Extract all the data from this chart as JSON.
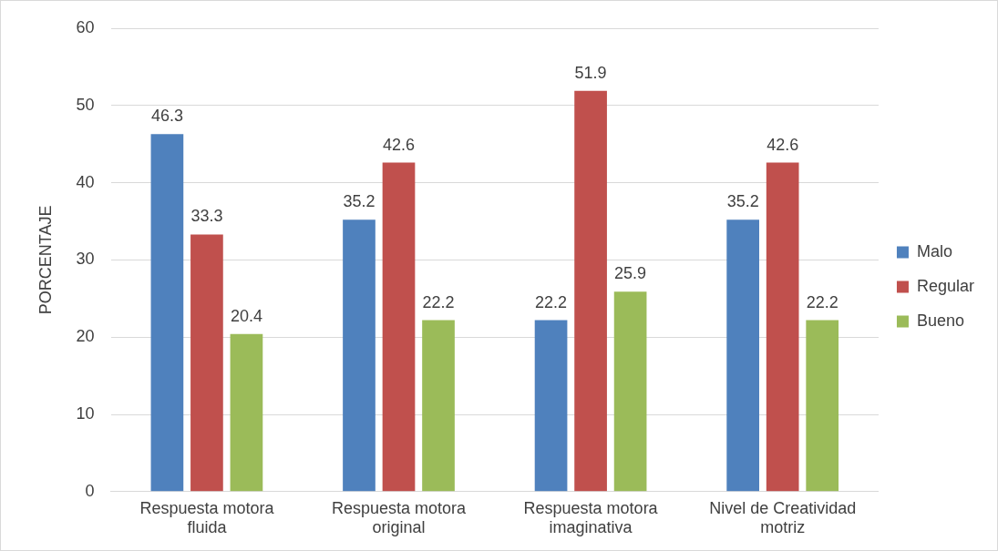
{
  "chart_data": {
    "type": "bar",
    "ylabel": "PORCENTAJE",
    "categories": [
      "Respuesta motora fluida",
      "Respuesta motora original",
      "Respuesta motora imaginativa",
      "Nivel de Creatividad motriz"
    ],
    "series": [
      {
        "name": "Malo",
        "color": "#4f81bd",
        "values": [
          46.3,
          35.2,
          22.2,
          35.2
        ]
      },
      {
        "name": "Regular",
        "color": "#c0504d",
        "values": [
          33.3,
          42.6,
          51.9,
          42.6
        ]
      },
      {
        "name": "Bueno",
        "color": "#9bbb59",
        "values": [
          20.4,
          22.2,
          25.9,
          22.2
        ]
      }
    ],
    "ylim": [
      0,
      60
    ],
    "yticks": [
      0,
      10,
      20,
      30,
      40,
      50,
      60
    ],
    "grid": "y",
    "legend": "right",
    "data_labels": true
  }
}
